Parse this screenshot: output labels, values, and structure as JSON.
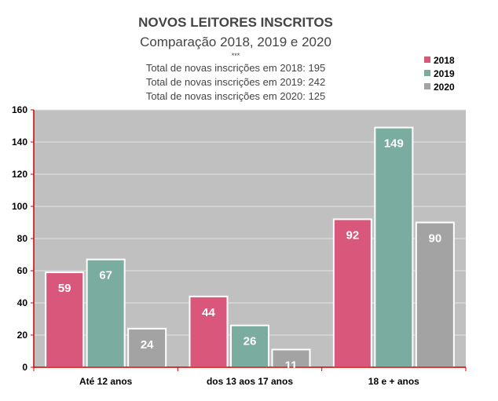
{
  "chart_data": {
    "type": "bar",
    "title": "NOVOS LEITORES INSCRITOS",
    "subtitle": "Comparação 2018, 2019 e 2020",
    "separator": "***",
    "notes": [
      "Total de novas inscrições em 2018: 195",
      "Total de novas inscrições em 2019: 242",
      "Total de novas inscrições em 2020: 125"
    ],
    "categories": [
      "Até 12 anos",
      "dos 13 aos 17 anos",
      "18 e + anos"
    ],
    "series": [
      {
        "name": "2018",
        "color": "#d9577a",
        "values": [
          59,
          44,
          92
        ]
      },
      {
        "name": "2019",
        "color": "#7aaca0",
        "values": [
          67,
          26,
          149
        ]
      },
      {
        "name": "2020",
        "color": "#a3a3a3",
        "values": [
          24,
          11,
          90
        ]
      }
    ],
    "ylim": [
      0,
      160
    ],
    "yticks": [
      0,
      20,
      40,
      60,
      80,
      100,
      120,
      140,
      160
    ],
    "grid": true,
    "legend": "top-right",
    "xlabel": "",
    "ylabel": "",
    "plot_background": "#c0c0c0",
    "axis_color": "#cc0000"
  }
}
